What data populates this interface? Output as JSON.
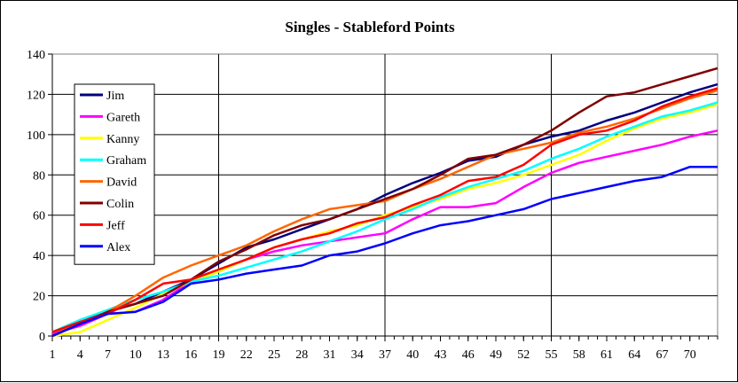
{
  "chart_data": {
    "type": "line",
    "title": "Singles - Stableford Points",
    "xlabel": "",
    "ylabel": "",
    "ylim": [
      0,
      140
    ],
    "yticks": [
      0,
      20,
      40,
      60,
      80,
      100,
      120,
      140
    ],
    "xlim": [
      1,
      73
    ],
    "xticks": [
      1,
      4,
      7,
      10,
      13,
      16,
      19,
      22,
      25,
      28,
      31,
      34,
      37,
      40,
      43,
      46,
      49,
      52,
      55,
      58,
      61,
      64,
      67,
      70
    ],
    "grid": "vertical and horizontal major lines",
    "legend_position": "left, inside plot",
    "series": [
      {
        "name": "Jim",
        "color": "#000080",
        "points": [
          [
            1,
            1
          ],
          [
            4,
            7
          ],
          [
            7,
            12
          ],
          [
            10,
            16
          ],
          [
            13,
            22
          ],
          [
            16,
            28
          ],
          [
            19,
            36
          ],
          [
            22,
            44
          ],
          [
            25,
            48
          ],
          [
            28,
            53
          ],
          [
            31,
            58
          ],
          [
            34,
            63
          ],
          [
            37,
            70
          ],
          [
            40,
            76
          ],
          [
            43,
            81
          ],
          [
            46,
            87
          ],
          [
            49,
            89
          ],
          [
            52,
            95
          ],
          [
            55,
            99
          ],
          [
            58,
            102
          ],
          [
            61,
            107
          ],
          [
            64,
            111
          ],
          [
            67,
            116
          ],
          [
            70,
            121
          ],
          [
            73,
            125
          ]
        ]
      },
      {
        "name": "Gareth",
        "color": "#ff00ff",
        "points": [
          [
            1,
            1
          ],
          [
            4,
            5
          ],
          [
            7,
            11
          ],
          [
            10,
            12
          ],
          [
            13,
            18
          ],
          [
            16,
            27
          ],
          [
            19,
            32
          ],
          [
            22,
            38
          ],
          [
            25,
            42
          ],
          [
            28,
            45
          ],
          [
            31,
            47
          ],
          [
            34,
            49
          ],
          [
            37,
            51
          ],
          [
            40,
            58
          ],
          [
            43,
            64
          ],
          [
            46,
            64
          ],
          [
            49,
            66
          ],
          [
            52,
            74
          ],
          [
            55,
            81
          ],
          [
            58,
            86
          ],
          [
            61,
            89
          ],
          [
            64,
            92
          ],
          [
            67,
            95
          ],
          [
            70,
            99
          ],
          [
            73,
            102
          ]
        ]
      },
      {
        "name": "Kanny",
        "color": "#ffff00",
        "points": [
          [
            1,
            0
          ],
          [
            4,
            2
          ],
          [
            7,
            8
          ],
          [
            10,
            14
          ],
          [
            13,
            21
          ],
          [
            16,
            27
          ],
          [
            19,
            32
          ],
          [
            22,
            38
          ],
          [
            25,
            44
          ],
          [
            28,
            48
          ],
          [
            31,
            52
          ],
          [
            34,
            55
          ],
          [
            37,
            60
          ],
          [
            40,
            64
          ],
          [
            43,
            68
          ],
          [
            46,
            73
          ],
          [
            49,
            76
          ],
          [
            52,
            80
          ],
          [
            55,
            85
          ],
          [
            58,
            90
          ],
          [
            61,
            97
          ],
          [
            64,
            103
          ],
          [
            67,
            108
          ],
          [
            70,
            111
          ],
          [
            73,
            115
          ]
        ]
      },
      {
        "name": "Graham",
        "color": "#00ffff",
        "points": [
          [
            1,
            2
          ],
          [
            4,
            8
          ],
          [
            7,
            13
          ],
          [
            10,
            18
          ],
          [
            13,
            22
          ],
          [
            16,
            27
          ],
          [
            19,
            30
          ],
          [
            22,
            34
          ],
          [
            25,
            38
          ],
          [
            28,
            42
          ],
          [
            31,
            47
          ],
          [
            34,
            52
          ],
          [
            37,
            58
          ],
          [
            40,
            63
          ],
          [
            43,
            69
          ],
          [
            46,
            74
          ],
          [
            49,
            78
          ],
          [
            52,
            82
          ],
          [
            55,
            88
          ],
          [
            58,
            93
          ],
          [
            61,
            99
          ],
          [
            64,
            104
          ],
          [
            67,
            109
          ],
          [
            70,
            112
          ],
          [
            73,
            116
          ]
        ]
      },
      {
        "name": "David",
        "color": "#ff6600",
        "points": [
          [
            1,
            2
          ],
          [
            4,
            6
          ],
          [
            7,
            12
          ],
          [
            10,
            20
          ],
          [
            13,
            29
          ],
          [
            16,
            35
          ],
          [
            19,
            40
          ],
          [
            22,
            45
          ],
          [
            25,
            52
          ],
          [
            28,
            58
          ],
          [
            31,
            63
          ],
          [
            34,
            65
          ],
          [
            37,
            67
          ],
          [
            40,
            73
          ],
          [
            43,
            78
          ],
          [
            46,
            84
          ],
          [
            49,
            90
          ],
          [
            52,
            93
          ],
          [
            55,
            96
          ],
          [
            58,
            101
          ],
          [
            61,
            104
          ],
          [
            64,
            108
          ],
          [
            67,
            113
          ],
          [
            70,
            118
          ],
          [
            73,
            122
          ]
        ]
      },
      {
        "name": "Colin",
        "color": "#800000",
        "points": [
          [
            1,
            0
          ],
          [
            4,
            6
          ],
          [
            7,
            12
          ],
          [
            10,
            16
          ],
          [
            13,
            20
          ],
          [
            16,
            28
          ],
          [
            19,
            37
          ],
          [
            22,
            43
          ],
          [
            25,
            50
          ],
          [
            28,
            55
          ],
          [
            31,
            58
          ],
          [
            34,
            63
          ],
          [
            37,
            68
          ],
          [
            40,
            73
          ],
          [
            43,
            80
          ],
          [
            46,
            88
          ],
          [
            49,
            90
          ],
          [
            52,
            95
          ],
          [
            55,
            102
          ],
          [
            58,
            111
          ],
          [
            61,
            119
          ],
          [
            64,
            121
          ],
          [
            67,
            125
          ],
          [
            70,
            129
          ],
          [
            73,
            133
          ]
        ]
      },
      {
        "name": "Jeff",
        "color": "#ff0000",
        "points": [
          [
            1,
            2
          ],
          [
            4,
            7
          ],
          [
            7,
            11
          ],
          [
            10,
            18
          ],
          [
            13,
            26
          ],
          [
            16,
            28
          ],
          [
            19,
            33
          ],
          [
            22,
            38
          ],
          [
            25,
            44
          ],
          [
            28,
            48
          ],
          [
            31,
            51
          ],
          [
            34,
            56
          ],
          [
            37,
            59
          ],
          [
            40,
            65
          ],
          [
            43,
            70
          ],
          [
            46,
            77
          ],
          [
            49,
            79
          ],
          [
            52,
            85
          ],
          [
            55,
            95
          ],
          [
            58,
            100
          ],
          [
            61,
            102
          ],
          [
            64,
            107
          ],
          [
            67,
            114
          ],
          [
            70,
            119
          ],
          [
            73,
            123
          ]
        ]
      },
      {
        "name": "Alex",
        "color": "#0000ff",
        "points": [
          [
            1,
            0
          ],
          [
            4,
            6
          ],
          [
            7,
            11
          ],
          [
            10,
            12
          ],
          [
            13,
            17
          ],
          [
            16,
            26
          ],
          [
            19,
            28
          ],
          [
            22,
            31
          ],
          [
            25,
            33
          ],
          [
            28,
            35
          ],
          [
            31,
            40
          ],
          [
            34,
            42
          ],
          [
            37,
            46
          ],
          [
            40,
            51
          ],
          [
            43,
            55
          ],
          [
            46,
            57
          ],
          [
            49,
            60
          ],
          [
            52,
            63
          ],
          [
            55,
            68
          ],
          [
            58,
            71
          ],
          [
            61,
            74
          ],
          [
            64,
            77
          ],
          [
            67,
            79
          ],
          [
            70,
            84
          ],
          [
            73,
            84
          ]
        ]
      }
    ]
  }
}
